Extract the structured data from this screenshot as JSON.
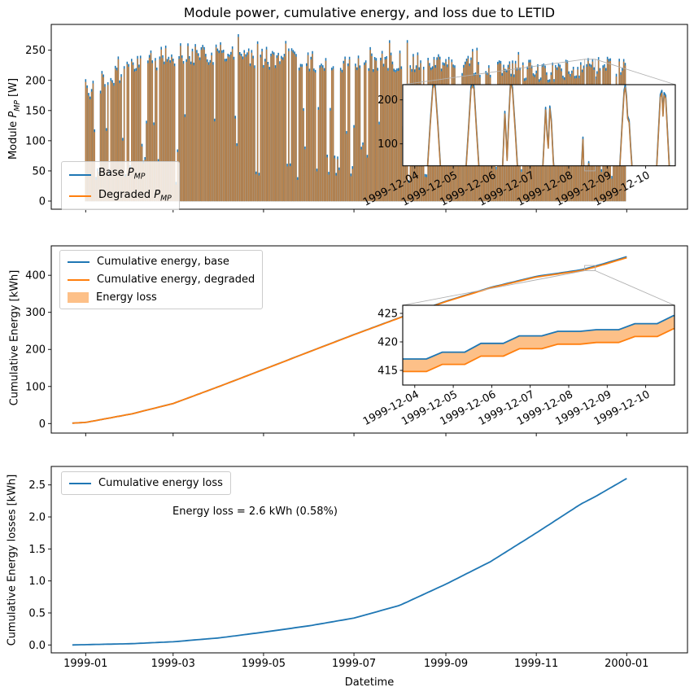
{
  "title": "Module power, cumulative energy, and loss due to LETID",
  "colors": {
    "base_blue": "#1f77b4",
    "degraded_orange": "#ff7f0e",
    "loss_fill": "#fdc088",
    "bar_brown": "#b87d43",
    "connector_gray": "#b0b0b0",
    "spine_black": "#000000"
  },
  "xaxis": {
    "label": "Datetime",
    "tick_days": [
      0,
      59,
      120,
      181,
      243,
      304,
      365
    ],
    "tick_labels": [
      "1999-01",
      "1999-03",
      "1999-05",
      "1999-07",
      "1999-09",
      "1999-11",
      "2000-01"
    ]
  },
  "chart_data": [
    {
      "id": "module-power",
      "type": "area",
      "ylabel_pre": "Module ",
      "ylabel_sym": "P",
      "ylabel_sub": "MP",
      "ylabel_post": " [W]",
      "ylim": [
        -13,
        292
      ],
      "yticks": [
        0,
        50,
        100,
        150,
        200,
        250
      ],
      "ytick_labels": [
        "0",
        "50",
        "100",
        "150",
        "200",
        "250"
      ],
      "legend": [
        {
          "pre": "Base ",
          "sym": "P",
          "sub": "MP"
        },
        {
          "pre": "Degraded ",
          "sym": "P",
          "sub": "MP"
        }
      ],
      "envelope_daily_peak_w": [
        [
          -9,
          180
        ],
        [
          0,
          185
        ],
        [
          31,
          235
        ],
        [
          59,
          252
        ],
        [
          90,
          255
        ],
        [
          120,
          248
        ],
        [
          151,
          242
        ],
        [
          181,
          238
        ],
        [
          212,
          242
        ],
        [
          243,
          235
        ],
        [
          273,
          230
        ],
        [
          304,
          221
        ],
        [
          334,
          228
        ],
        [
          365,
          230
        ]
      ],
      "noise_seed": 123457,
      "cloudy_prob": 0.13,
      "inset": {
        "ylim": [
          50,
          235
        ],
        "yticks": [
          100,
          200
        ],
        "ytick_labels": [
          "100",
          "200"
        ],
        "xtick_labels": [
          "1999-12-04",
          "1999-12-05",
          "1999-12-06",
          "1999-12-07",
          "1999-12-08",
          "1999-12-09",
          "1999-12-10"
        ],
        "daily_profiles_w": [
          [
            [
              0.3,
              0
            ],
            [
              0.4,
              140
            ],
            [
              0.47,
              226
            ],
            [
              0.5,
              235
            ],
            [
              0.53,
              226
            ],
            [
              0.6,
              140
            ],
            [
              0.7,
              0
            ]
          ],
          [
            [
              0.3,
              0
            ],
            [
              0.4,
              135
            ],
            [
              0.46,
              224
            ],
            [
              0.5,
              232
            ],
            [
              0.54,
              224
            ],
            [
              0.6,
              135
            ],
            [
              0.7,
              0
            ]
          ],
          [
            [
              0.26,
              0
            ],
            [
              0.31,
              105
            ],
            [
              0.34,
              168
            ],
            [
              0.37,
              120
            ],
            [
              0.4,
              62
            ],
            [
              0.44,
              150
            ],
            [
              0.49,
              240
            ],
            [
              0.54,
              222
            ],
            [
              0.61,
              128
            ],
            [
              0.7,
              0
            ]
          ],
          [
            [
              0.3,
              0
            ],
            [
              0.36,
              100
            ],
            [
              0.4,
              177
            ],
            [
              0.44,
              118
            ],
            [
              0.47,
              90
            ],
            [
              0.51,
              180
            ],
            [
              0.55,
              148
            ],
            [
              0.6,
              58
            ],
            [
              0.66,
              0
            ]
          ],
          [
            [
              0.31,
              0
            ],
            [
              0.34,
              58
            ],
            [
              0.37,
              110
            ],
            [
              0.4,
              18
            ],
            [
              0.48,
              0
            ],
            [
              0.52,
              55
            ],
            [
              0.56,
              16
            ],
            [
              0.6,
              0
            ]
          ],
          [
            [
              0.3,
              0
            ],
            [
              0.38,
              130
            ],
            [
              0.44,
              216
            ],
            [
              0.47,
              228
            ],
            [
              0.5,
              204
            ],
            [
              0.53,
              158
            ],
            [
              0.57,
              148
            ],
            [
              0.61,
              88
            ],
            [
              0.68,
              0
            ]
          ],
          [
            [
              0.26,
              0
            ],
            [
              0.33,
              120
            ],
            [
              0.38,
              206
            ],
            [
              0.42,
              215
            ],
            [
              0.45,
              163
            ],
            [
              0.48,
              210
            ],
            [
              0.52,
              204
            ],
            [
              0.57,
              118
            ],
            [
              0.64,
              0
            ]
          ]
        ]
      }
    },
    {
      "id": "cumulative-energy",
      "type": "line",
      "ylabel": "Cumulative Energy [kWh]",
      "ylim": [
        -26,
        479
      ],
      "yticks": [
        0,
        100,
        200,
        300,
        400
      ],
      "ytick_labels": [
        "0",
        "100",
        "200",
        "300",
        "400"
      ],
      "legend": [
        "Cumulative energy, base",
        "Cumulative energy, degraded",
        "Energy loss"
      ],
      "base_kwh_by_day": [
        [
          -9,
          1
        ],
        [
          0,
          3
        ],
        [
          31,
          26
        ],
        [
          59,
          54
        ],
        [
          90,
          100
        ],
        [
          120,
          146
        ],
        [
          151,
          194
        ],
        [
          181,
          240
        ],
        [
          212,
          286
        ],
        [
          243,
          330
        ],
        [
          273,
          367
        ],
        [
          304,
          397
        ],
        [
          334,
          414.5
        ],
        [
          336,
          416.5
        ],
        [
          344,
          424.8
        ],
        [
          365,
          450
        ]
      ],
      "inset": {
        "ylim": [
          412.4,
          426.4
        ],
        "yticks": [
          415,
          420,
          425
        ],
        "ytick_labels": [
          "415",
          "420",
          "425"
        ],
        "xtick_labels": [
          "1999-12-04",
          "1999-12-05",
          "1999-12-06",
          "1999-12-07",
          "1999-12-08",
          "1999-12-09",
          "1999-12-10"
        ],
        "base_day_end_kwh": [
          417.0,
          418.2,
          419.75,
          421.05,
          421.85,
          422.15,
          423.2,
          424.6
        ],
        "degraded_day_end_kwh": [
          414.8,
          416.05,
          417.5,
          418.8,
          419.6,
          419.9,
          420.95,
          422.3
        ]
      }
    },
    {
      "id": "cumulative-loss",
      "type": "line",
      "ylabel": "Cumulative Energy losses [kWh]",
      "ylim": [
        -0.12,
        2.79
      ],
      "yticks": [
        0.0,
        0.5,
        1.0,
        1.5,
        2.0,
        2.5
      ],
      "ytick_labels": [
        "0.0",
        "0.5",
        "1.0",
        "1.5",
        "2.0",
        "2.5"
      ],
      "legend": [
        "Cumulative energy loss"
      ],
      "annotation": "Energy loss = 2.6 kWh (0.58%)",
      "loss_kwh_by_day": [
        [
          -9,
          0.0
        ],
        [
          0,
          0.005
        ],
        [
          31,
          0.02
        ],
        [
          59,
          0.05
        ],
        [
          90,
          0.11
        ],
        [
          120,
          0.2
        ],
        [
          151,
          0.3
        ],
        [
          181,
          0.42
        ],
        [
          212,
          0.62
        ],
        [
          243,
          0.95
        ],
        [
          273,
          1.3
        ],
        [
          304,
          1.75
        ],
        [
          334,
          2.2
        ],
        [
          344,
          2.32
        ],
        [
          365,
          2.6
        ]
      ]
    }
  ]
}
